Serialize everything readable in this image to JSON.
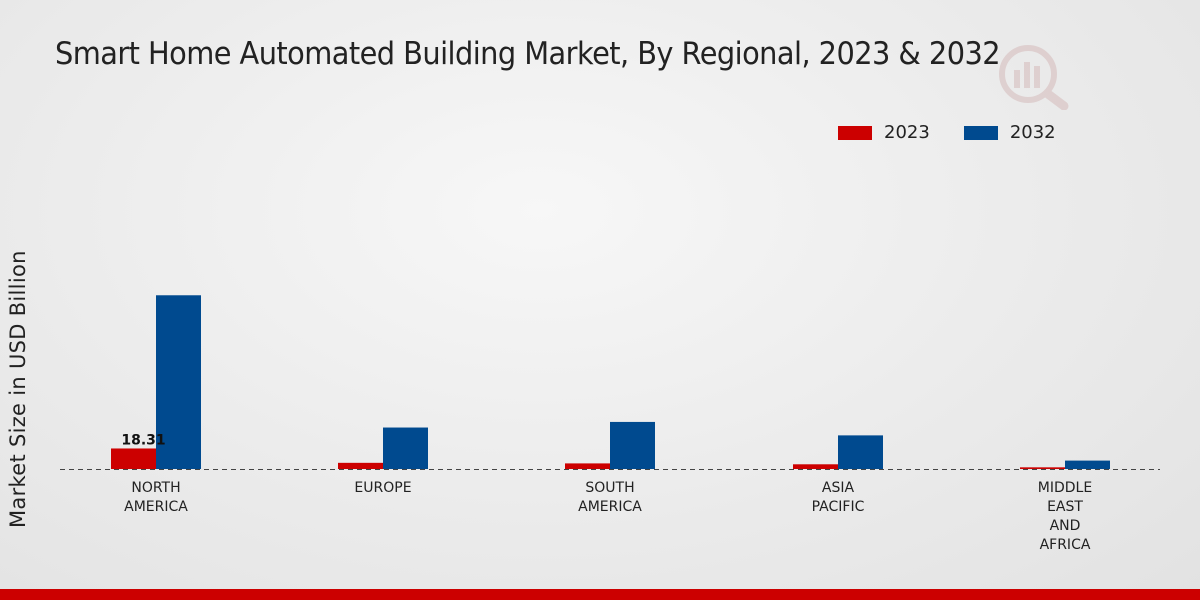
{
  "chart_data": {
    "type": "bar",
    "title": "Smart Home Automated Building Market, By Regional, 2023 & 2032",
    "xlabel": "",
    "ylabel": "Market Size in USD Billion",
    "categories": [
      [
        "NORTH",
        "AMERICA"
      ],
      [
        "EUROPE"
      ],
      [
        "SOUTH",
        "AMERICA"
      ],
      [
        "ASIA",
        "PACIFIC"
      ],
      [
        "MIDDLE",
        "EAST",
        "AND",
        "AFRICA"
      ]
    ],
    "series": [
      {
        "name": "2023",
        "color": "#cc0000",
        "values": [
          18.31,
          5.5,
          5.0,
          4.2,
          1.5
        ]
      },
      {
        "name": "2032",
        "color": "#004a8f",
        "values": [
          155.0,
          37.0,
          42.0,
          30.0,
          7.5
        ]
      }
    ],
    "data_labels": [
      {
        "series": 0,
        "index": 0,
        "text": "18.31"
      }
    ],
    "ylim": [
      0,
      240
    ],
    "grid": false,
    "legend_position": "top-right"
  }
}
